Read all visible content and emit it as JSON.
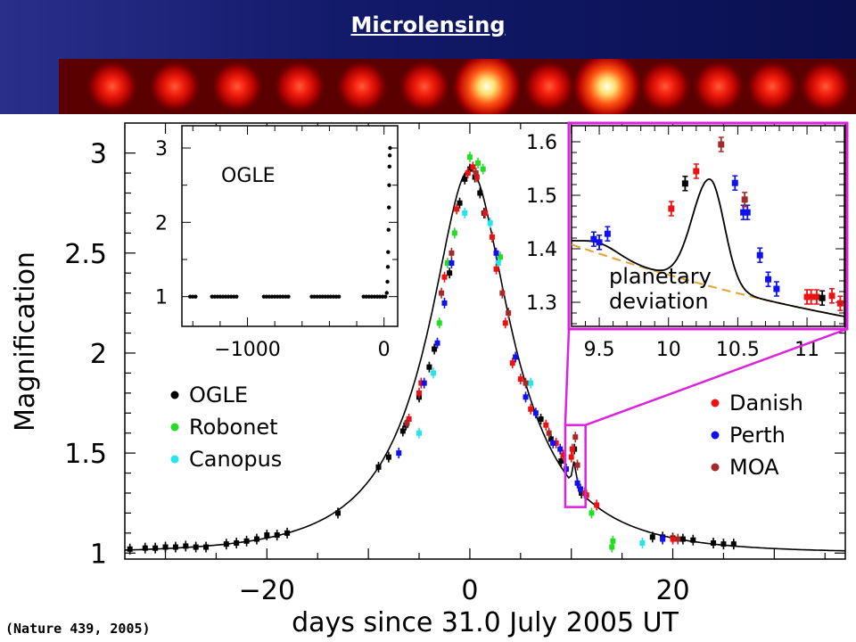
{
  "header": {
    "title": "Microlensing"
  },
  "citation": "(Nature 439, 2005)",
  "chart_data": [
    {
      "type": "scatter",
      "xlabel": "days since 31.0 July 2005 UT",
      "ylabel": "Magnification",
      "xlim": [
        -34,
        37
      ],
      "ylim": [
        0.97,
        3.15
      ],
      "xticks": [
        -20,
        0,
        20
      ],
      "xtick_labels": [
        "−20",
        "0",
        "20"
      ],
      "yticks": [
        1,
        1.5,
        2,
        2.5,
        3
      ],
      "ytick_labels": [
        "1",
        "1.5",
        "2",
        "2.5",
        "3"
      ],
      "legend_left": [
        {
          "name": "OGLE",
          "color": "#000000"
        },
        {
          "name": "Robonet",
          "color": "#22dd22"
        },
        {
          "name": "Canopus",
          "color": "#22e5f0"
        }
      ],
      "legend_right": [
        {
          "name": "Danish",
          "color": "#ee1111"
        },
        {
          "name": "Perth",
          "color": "#1111ee"
        },
        {
          "name": "MOA",
          "color": "#a52a2a"
        }
      ],
      "model_curve": {
        "t0": 0.0,
        "u0": 0.359,
        "tE": 11.0
      },
      "series": [
        {
          "name": "OGLE",
          "color": "#000000",
          "points": [
            [
              -33.5,
              1.02
            ],
            [
              -32,
              1.025
            ],
            [
              -31,
              1.025
            ],
            [
              -30,
              1.03
            ],
            [
              -29,
              1.03
            ],
            [
              -28,
              1.035
            ],
            [
              -27,
              1.03
            ],
            [
              -26,
              1.03
            ],
            [
              -24,
              1.045
            ],
            [
              -23,
              1.05
            ],
            [
              -22,
              1.06
            ],
            [
              -21,
              1.07
            ],
            [
              -20,
              1.09
            ],
            [
              -19,
              1.09
            ],
            [
              -18,
              1.1
            ],
            [
              -13,
              1.2
            ],
            [
              -9,
              1.43
            ],
            [
              -8,
              1.48
            ],
            [
              -6.6,
              1.61
            ],
            [
              -6.3,
              1.64
            ],
            [
              -5,
              1.78
            ],
            [
              -4,
              1.93
            ],
            [
              -3.5,
              2.02
            ],
            [
              -2,
              2.4
            ],
            [
              -1,
              2.75
            ],
            [
              -0.5,
              2.87
            ],
            [
              0,
              2.92
            ],
            [
              0.5,
              2.88
            ],
            [
              1,
              2.8
            ],
            [
              1.4,
              2.7
            ],
            [
              7,
              1.67
            ],
            [
              8,
              1.57
            ],
            [
              9,
              1.46
            ],
            [
              10.3,
              1.52
            ],
            [
              11,
              1.3
            ],
            [
              18,
              1.08
            ],
            [
              19,
              1.08
            ],
            [
              20,
              1.075
            ],
            [
              21,
              1.07
            ],
            [
              22,
              1.065
            ],
            [
              24,
              1.05
            ],
            [
              25,
              1.045
            ],
            [
              26,
              1.045
            ]
          ]
        },
        {
          "name": "Robonet",
          "color": "#22dd22",
          "points": [
            [
              -3,
              2.15
            ],
            [
              -2.2,
              2.45
            ],
            [
              -1.5,
              2.6
            ],
            [
              0,
              2.98
            ],
            [
              0.8,
              2.95
            ],
            [
              1.3,
              2.92
            ],
            [
              3,
              2.48
            ],
            [
              12,
              1.2
            ],
            [
              14,
              1.03
            ],
            [
              14.1,
              1.06
            ]
          ]
        },
        {
          "name": "Canopus",
          "color": "#22e5f0",
          "points": [
            [
              -5,
              1.6
            ],
            [
              -3.6,
              1.9
            ],
            [
              -0.5,
              2.7
            ],
            [
              2,
              2.65
            ],
            [
              2.8,
              2.45
            ],
            [
              6,
              1.85
            ],
            [
              17,
              1.05
            ]
          ]
        },
        {
          "name": "Danish",
          "color": "#ee1111",
          "points": [
            [
              -6,
              1.67
            ],
            [
              -5,
              1.8
            ],
            [
              -4.8,
              1.85
            ],
            [
              -2.5,
              2.38
            ],
            [
              -1.3,
              2.72
            ],
            [
              -0.2,
              2.9
            ],
            [
              0.3,
              2.93
            ],
            [
              0.7,
              2.88
            ],
            [
              1.5,
              2.7
            ],
            [
              2.2,
              2.58
            ],
            [
              2.6,
              2.42
            ],
            [
              3.5,
              2.15
            ],
            [
              4.2,
              1.95
            ],
            [
              5,
              1.87
            ],
            [
              6,
              1.72
            ],
            [
              7.5,
              1.64
            ],
            [
              8.5,
              1.55
            ],
            [
              9.2,
              1.49
            ],
            [
              10.0,
              1.48
            ],
            [
              10.1,
              1.52
            ],
            [
              11.5,
              1.29
            ],
            [
              12.5,
              1.24
            ],
            [
              20,
              1.07
            ]
          ]
        },
        {
          "name": "Perth",
          "color": "#1111ee",
          "points": [
            [
              -7,
              1.5
            ],
            [
              -4.5,
              1.85
            ],
            [
              -3.2,
              2.05
            ],
            [
              -2.5,
              2.25
            ],
            [
              -1.8,
              2.45
            ],
            [
              2.6,
              2.5
            ],
            [
              4.5,
              1.98
            ],
            [
              5.5,
              1.78
            ],
            [
              6.5,
              1.7
            ],
            [
              8.2,
              1.55
            ],
            [
              8.9,
              1.52
            ],
            [
              9.5,
              1.42
            ],
            [
              10.6,
              1.35
            ],
            [
              10.9,
              1.32
            ],
            [
              19,
              1.07
            ]
          ]
        },
        {
          "name": "MOA",
          "color": "#a52a2a",
          "points": [
            [
              -6.2,
              1.65
            ],
            [
              -2.8,
              2.3
            ],
            [
              -1.8,
              2.5
            ],
            [
              0.6,
              2.9
            ],
            [
              3.2,
              2.3
            ],
            [
              3.8,
              2.2
            ],
            [
              5.5,
              1.85
            ],
            [
              7.8,
              1.6
            ],
            [
              10.4,
              1.58
            ],
            [
              10.6,
              1.44
            ],
            [
              11.3,
              1.3
            ],
            [
              20.5,
              1.07
            ]
          ]
        }
      ],
      "highlight_box": {
        "x": [
          9.4,
          11.4
        ],
        "y": [
          1.23,
          1.64
        ]
      }
    },
    {
      "type": "scatter",
      "title": "OGLE",
      "xlim": [
        -1480,
        100
      ],
      "ylim": [
        0.6,
        3.3
      ],
      "xticks": [
        -1000,
        0
      ],
      "xtick_labels": [
        "−1000",
        "0"
      ],
      "yticks": [
        1,
        2,
        3
      ],
      "ytick_labels": [
        "1",
        "2",
        "3"
      ],
      "baseline_segments": [
        [
          -1420,
          -1380
        ],
        [
          -1260,
          -1080
        ],
        [
          -880,
          -700
        ],
        [
          -530,
          -330
        ],
        [
          -150,
          20
        ]
      ],
      "rise_points": [
        [
          20,
          1.05
        ],
        [
          25,
          1.2
        ],
        [
          28,
          1.4
        ],
        [
          30,
          1.6
        ],
        [
          33,
          1.9
        ],
        [
          36,
          2.2
        ],
        [
          38,
          2.5
        ],
        [
          40,
          2.75
        ],
        [
          42,
          2.9
        ],
        [
          44,
          3.0
        ]
      ]
    },
    {
      "type": "scatter",
      "xlim": [
        9.3,
        11.27
      ],
      "ylim": [
        1.255,
        1.63
      ],
      "xticks": [
        9.5,
        10,
        10.5,
        11
      ],
      "xtick_labels": [
        "9.5",
        "10",
        "10.5",
        "11"
      ],
      "yticks": [
        1.3,
        1.4,
        1.5,
        1.6
      ],
      "ytick_labels": [
        "1.3",
        "1.4",
        "1.5",
        "1.6"
      ],
      "annotation": [
        "planetary",
        "deviation"
      ],
      "points": [
        {
          "x": 9.46,
          "y": 1.418,
          "series": "Perth"
        },
        {
          "x": 9.5,
          "y": 1.412,
          "series": "Perth"
        },
        {
          "x": 9.56,
          "y": 1.428,
          "series": "Perth"
        },
        {
          "x": 10.02,
          "y": 1.475,
          "series": "Danish"
        },
        {
          "x": 10.12,
          "y": 1.522,
          "series": "OGLE"
        },
        {
          "x": 10.2,
          "y": 1.545,
          "series": "Danish"
        },
        {
          "x": 10.38,
          "y": 1.595,
          "series": "MOA"
        },
        {
          "x": 10.48,
          "y": 1.523,
          "series": "Perth"
        },
        {
          "x": 10.54,
          "y": 1.468,
          "series": "Perth"
        },
        {
          "x": 10.57,
          "y": 1.468,
          "series": "Perth"
        },
        {
          "x": 10.55,
          "y": 1.492,
          "series": "MOA"
        },
        {
          "x": 10.66,
          "y": 1.388,
          "series": "Perth"
        },
        {
          "x": 10.72,
          "y": 1.343,
          "series": "Perth"
        },
        {
          "x": 10.78,
          "y": 1.325,
          "series": "Perth"
        },
        {
          "x": 11.0,
          "y": 1.31,
          "series": "Danish"
        },
        {
          "x": 11.03,
          "y": 1.31,
          "series": "Danish"
        },
        {
          "x": 11.07,
          "y": 1.31,
          "series": "Danish"
        },
        {
          "x": 11.11,
          "y": 1.308,
          "series": "OGLE"
        },
        {
          "x": 11.18,
          "y": 1.312,
          "series": "Danish"
        },
        {
          "x": 11.24,
          "y": 1.298,
          "series": "Danish"
        }
      ]
    }
  ]
}
